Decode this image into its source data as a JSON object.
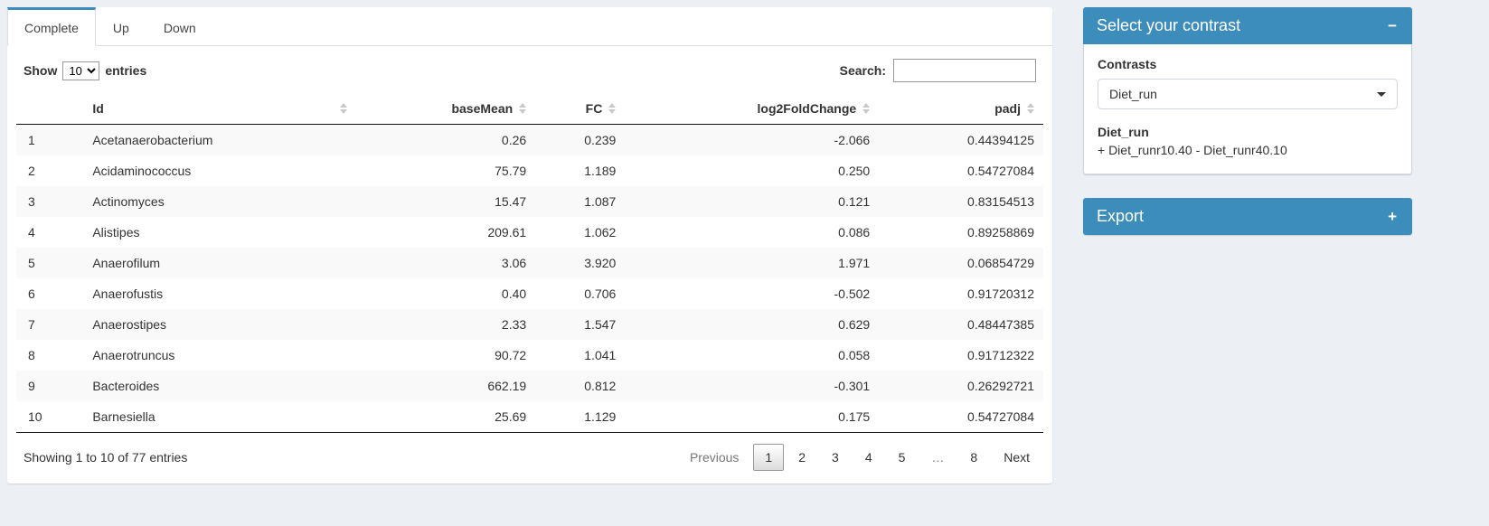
{
  "colors": {
    "accent": "#3c8dbc"
  },
  "tabs": [
    {
      "label": "Complete",
      "active": true
    },
    {
      "label": "Up",
      "active": false
    },
    {
      "label": "Down",
      "active": false
    }
  ],
  "table_controls": {
    "show_label": "Show",
    "page_length": "10",
    "entries_label": "entries",
    "search_label": "Search:",
    "search_value": ""
  },
  "table": {
    "columns": [
      "Id",
      "baseMean",
      "FC",
      "log2FoldChange",
      "padj"
    ],
    "rows": [
      {
        "n": "1",
        "id": "Acetanaerobacterium",
        "baseMean": "0.26",
        "fc": "0.239",
        "log2fc": "-2.066",
        "padj": "0.44394125"
      },
      {
        "n": "2",
        "id": "Acidaminococcus",
        "baseMean": "75.79",
        "fc": "1.189",
        "log2fc": "0.250",
        "padj": "0.54727084"
      },
      {
        "n": "3",
        "id": "Actinomyces",
        "baseMean": "15.47",
        "fc": "1.087",
        "log2fc": "0.121",
        "padj": "0.83154513"
      },
      {
        "n": "4",
        "id": "Alistipes",
        "baseMean": "209.61",
        "fc": "1.062",
        "log2fc": "0.086",
        "padj": "0.89258869"
      },
      {
        "n": "5",
        "id": "Anaerofilum",
        "baseMean": "3.06",
        "fc": "3.920",
        "log2fc": "1.971",
        "padj": "0.06854729"
      },
      {
        "n": "6",
        "id": "Anaerofustis",
        "baseMean": "0.40",
        "fc": "0.706",
        "log2fc": "-0.502",
        "padj": "0.91720312"
      },
      {
        "n": "7",
        "id": "Anaerostipes",
        "baseMean": "2.33",
        "fc": "1.547",
        "log2fc": "0.629",
        "padj": "0.48447385"
      },
      {
        "n": "8",
        "id": "Anaerotruncus",
        "baseMean": "90.72",
        "fc": "1.041",
        "log2fc": "0.058",
        "padj": "0.91712322"
      },
      {
        "n": "9",
        "id": "Bacteroides",
        "baseMean": "662.19",
        "fc": "0.812",
        "log2fc": "-0.301",
        "padj": "0.26292721"
      },
      {
        "n": "10",
        "id": "Barnesiella",
        "baseMean": "25.69",
        "fc": "1.129",
        "log2fc": "0.175",
        "padj": "0.54727084"
      }
    ]
  },
  "footer": {
    "info": "Showing 1 to 10 of 77 entries",
    "pagination": [
      {
        "label": "Previous",
        "key": "previous",
        "state": "disabled"
      },
      {
        "label": "1",
        "key": "1",
        "state": "active"
      },
      {
        "label": "2",
        "key": "2"
      },
      {
        "label": "3",
        "key": "3"
      },
      {
        "label": "4",
        "key": "4"
      },
      {
        "label": "5",
        "key": "5"
      },
      {
        "label": "…",
        "key": "ellipsis",
        "state": "disabled"
      },
      {
        "label": "8",
        "key": "8"
      },
      {
        "label": "Next",
        "key": "next"
      }
    ]
  },
  "contrast_box": {
    "title": "Select your contrast",
    "collapse_icon": "−",
    "contrasts_label": "Contrasts",
    "selected": "Diet_run",
    "detail_title": "Diet_run",
    "detail_formula": "+ Diet_runr10.40 - Diet_runr40.10"
  },
  "export_box": {
    "title": "Export",
    "expand_icon": "+"
  }
}
